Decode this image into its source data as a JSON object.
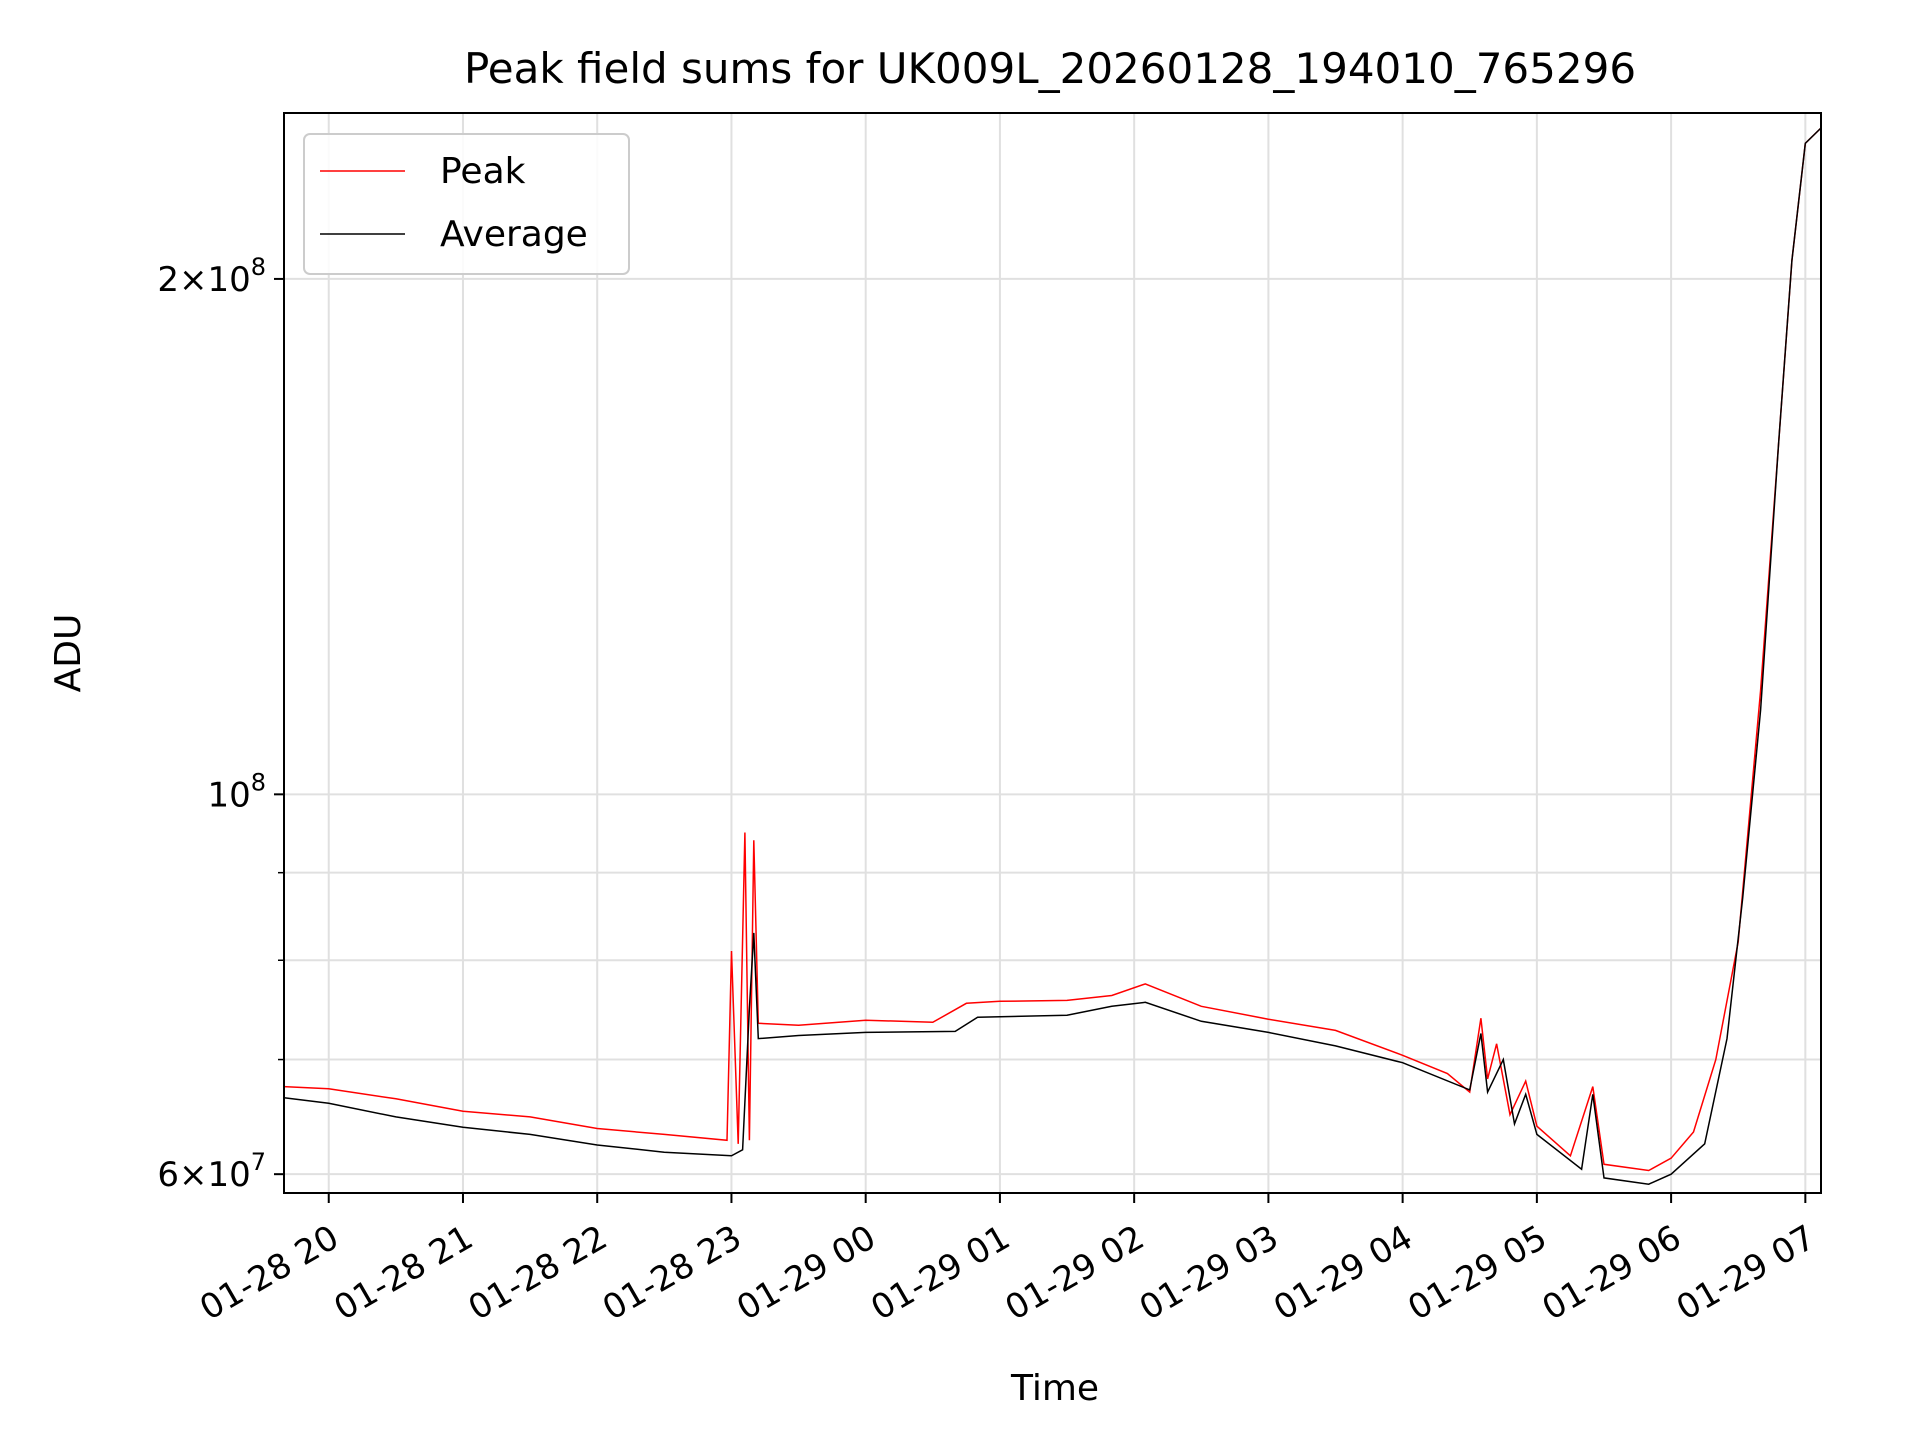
{
  "chart_data": {
    "type": "line",
    "title": "Peak field sums for UK009L_20260128_194010_765296",
    "xlabel": "Time",
    "ylabel": "ADU",
    "y_scale": "log",
    "ylim": [
      58500000,
      250000000
    ],
    "xlim": [
      "01-28 19:40",
      "01-29 07:07"
    ],
    "grid": true,
    "legend_position": "upper-left",
    "x_ticks": [
      "01-28 20",
      "01-28 21",
      "01-28 22",
      "01-28 23",
      "01-29 00",
      "01-29 01",
      "01-29 02",
      "01-29 03",
      "01-29 04",
      "01-29 05",
      "01-29 06",
      "01-29 07"
    ],
    "y_tick_labels": {
      "major": [
        {
          "value": 60000000,
          "mantissa": "6",
          "exponent": "7"
        },
        {
          "value": 100000000,
          "mantissa": "",
          "exponent": "8"
        },
        {
          "value": 200000000,
          "mantissa": "2",
          "exponent": "8"
        }
      ],
      "minor_values": [
        70000000,
        80000000,
        90000000
      ]
    },
    "series": [
      {
        "name": "Peak",
        "color": "#ff0000",
        "points": [
          [
            "01-28 19:40",
            67500000
          ],
          [
            "01-28 20:00",
            67300000
          ],
          [
            "01-28 20:30",
            66400000
          ],
          [
            "01-28 21:00",
            65300000
          ],
          [
            "01-28 21:30",
            64800000
          ],
          [
            "01-28 22:00",
            63800000
          ],
          [
            "01-28 22:30",
            63300000
          ],
          [
            "01-28 22:58",
            62800000
          ],
          [
            "01-28 23:00",
            81000000
          ],
          [
            "01-28 23:03",
            62500000
          ],
          [
            "01-28 23:06",
            95000000
          ],
          [
            "01-28 23:08",
            62800000
          ],
          [
            "01-28 23:10",
            94000000
          ],
          [
            "01-28 23:12",
            73500000
          ],
          [
            "01-28 23:30",
            73300000
          ],
          [
            "01-29 00:00",
            73800000
          ],
          [
            "01-29 00:30",
            73600000
          ],
          [
            "01-29 00:45",
            75500000
          ],
          [
            "01-29 01:00",
            75700000
          ],
          [
            "01-29 01:30",
            75800000
          ],
          [
            "01-29 01:50",
            76300000
          ],
          [
            "01-29 02:05",
            77500000
          ],
          [
            "01-29 02:30",
            75200000
          ],
          [
            "01-29 03:00",
            73900000
          ],
          [
            "01-29 03:30",
            72800000
          ],
          [
            "01-29 04:00",
            70400000
          ],
          [
            "01-29 04:20",
            68700000
          ],
          [
            "01-29 04:30",
            67000000
          ],
          [
            "01-29 04:35",
            74000000
          ],
          [
            "01-29 04:38",
            68200000
          ],
          [
            "01-29 04:42",
            71500000
          ],
          [
            "01-29 04:48",
            65000000
          ],
          [
            "01-29 04:55",
            68000000
          ],
          [
            "01-29 05:00",
            64000000
          ],
          [
            "01-29 05:15",
            61500000
          ],
          [
            "01-29 05:25",
            67500000
          ],
          [
            "01-29 05:30",
            60800000
          ],
          [
            "01-29 05:50",
            60300000
          ],
          [
            "01-29 06:00",
            61300000
          ],
          [
            "01-29 06:10",
            63500000
          ],
          [
            "01-29 06:20",
            70000000
          ],
          [
            "01-29 06:30",
            82000000
          ],
          [
            "01-29 06:40",
            115000000
          ],
          [
            "01-29 06:48",
            160000000
          ],
          [
            "01-29 06:54",
            205000000
          ],
          [
            "01-29 07:00",
            240000000
          ],
          [
            "01-29 07:07",
            245000000
          ]
        ]
      },
      {
        "name": "Average",
        "color": "#000000",
        "points": [
          [
            "01-28 19:40",
            66500000
          ],
          [
            "01-28 20:00",
            66000000
          ],
          [
            "01-28 20:30",
            64800000
          ],
          [
            "01-28 21:00",
            63900000
          ],
          [
            "01-28 21:30",
            63300000
          ],
          [
            "01-28 22:00",
            62400000
          ],
          [
            "01-28 22:30",
            61800000
          ],
          [
            "01-28 23:00",
            61500000
          ],
          [
            "01-28 23:05",
            62000000
          ],
          [
            "01-28 23:08",
            75000000
          ],
          [
            "01-28 23:10",
            83000000
          ],
          [
            "01-28 23:12",
            72000000
          ],
          [
            "01-28 23:30",
            72300000
          ],
          [
            "01-29 00:00",
            72600000
          ],
          [
            "01-29 00:40",
            72700000
          ],
          [
            "01-29 00:50",
            74100000
          ],
          [
            "01-29 01:30",
            74300000
          ],
          [
            "01-29 01:50",
            75200000
          ],
          [
            "01-29 02:05",
            75600000
          ],
          [
            "01-29 02:30",
            73700000
          ],
          [
            "01-29 03:00",
            72600000
          ],
          [
            "01-29 03:30",
            71300000
          ],
          [
            "01-29 04:00",
            69700000
          ],
          [
            "01-29 04:30",
            67200000
          ],
          [
            "01-29 04:35",
            72500000
          ],
          [
            "01-29 04:38",
            67000000
          ],
          [
            "01-29 04:45",
            70000000
          ],
          [
            "01-29 04:50",
            64200000
          ],
          [
            "01-29 04:55",
            66800000
          ],
          [
            "01-29 05:00",
            63300000
          ],
          [
            "01-29 05:20",
            60400000
          ],
          [
            "01-29 05:25",
            66800000
          ],
          [
            "01-29 05:30",
            59700000
          ],
          [
            "01-29 05:50",
            59200000
          ],
          [
            "01-29 06:00",
            60000000
          ],
          [
            "01-29 06:15",
            62500000
          ],
          [
            "01-29 06:25",
            72000000
          ],
          [
            "01-29 06:32",
            87000000
          ],
          [
            "01-29 06:40",
            112000000
          ],
          [
            "01-29 06:48",
            160000000
          ],
          [
            "01-29 06:54",
            205000000
          ],
          [
            "01-29 07:00",
            240000000
          ],
          [
            "01-29 07:07",
            245000000
          ]
        ]
      }
    ]
  }
}
